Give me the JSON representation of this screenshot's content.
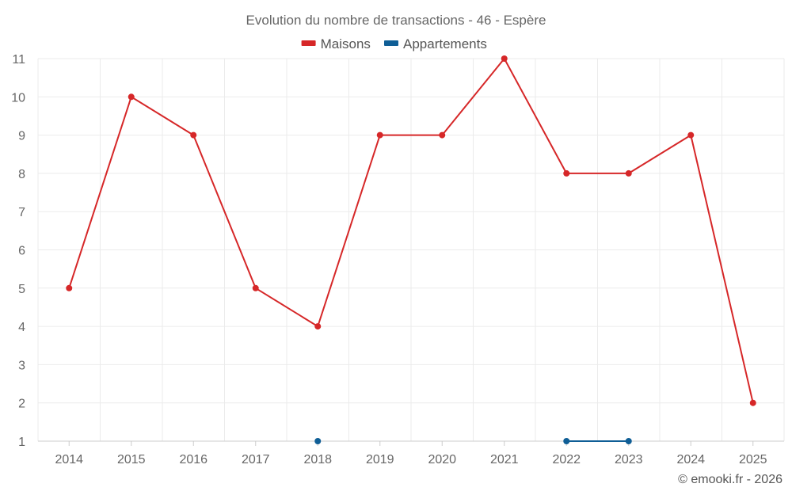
{
  "chart_data": {
    "type": "line",
    "title": "Evolution du nombre de transactions - 46 - Espère",
    "categories": [
      "2014",
      "2015",
      "2016",
      "2017",
      "2018",
      "2019",
      "2020",
      "2021",
      "2022",
      "2023",
      "2024",
      "2025"
    ],
    "series": [
      {
        "name": "Maisons",
        "color": "#d62728",
        "values": [
          5,
          10,
          9,
          5,
          4,
          9,
          9,
          11,
          8,
          8,
          9,
          2
        ]
      },
      {
        "name": "Appartements",
        "color": "#0f5e96",
        "values": [
          null,
          null,
          null,
          null,
          1,
          null,
          null,
          null,
          1,
          1,
          null,
          null
        ]
      }
    ],
    "yticks": [
      1,
      2,
      3,
      4,
      5,
      6,
      7,
      8,
      9,
      10,
      11
    ],
    "ylim": [
      1,
      11
    ],
    "xlabel": "",
    "ylabel": "",
    "grid": true,
    "legend_position": "top-center"
  },
  "credit": "© emooki.fr - 2026"
}
